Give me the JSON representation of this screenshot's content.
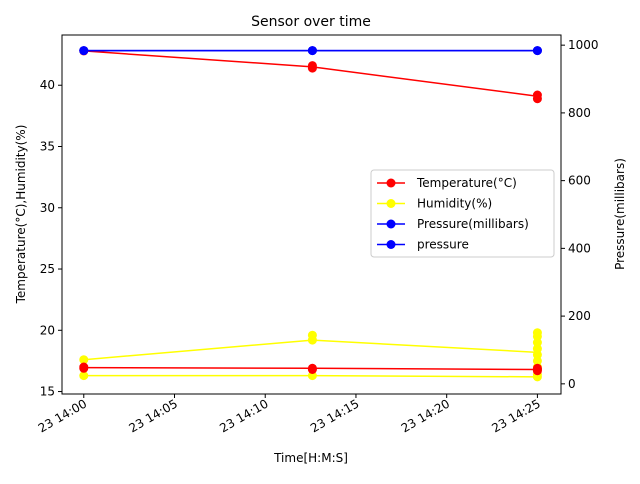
{
  "chart_data": {
    "type": "line",
    "title": "Sensor over time",
    "xlabel": "Time[H:M:S]",
    "ylabel_left": "Temperature(°C),Humidity(%)",
    "ylabel_right": "Pressure(millibars)",
    "x_ticks": [
      {
        "value": 0,
        "label": "23 14:00"
      },
      {
        "value": 5,
        "label": "23 14:05"
      },
      {
        "value": 10,
        "label": "23 14:10"
      },
      {
        "value": 15,
        "label": "23 14:15"
      },
      {
        "value": 20,
        "label": "23 14:20"
      },
      {
        "value": 25,
        "label": "23 14:25"
      }
    ],
    "xlim": [
      -1.2,
      26.3
    ],
    "ylim_left": [
      14.8,
      44.1
    ],
    "yticks_left": [
      15,
      20,
      25,
      30,
      35,
      40
    ],
    "ylim_right": [
      -30,
      1030
    ],
    "yticks_right": [
      0,
      200,
      400,
      600,
      800,
      1000
    ],
    "legend_position": "center-right",
    "grid": false,
    "series": [
      {
        "name": "Temperature(°C)",
        "color": "#ff0000",
        "axis": "left",
        "x": [
          0,
          12.6,
          25
        ],
        "y": [
          16.95,
          16.9,
          16.8
        ],
        "marker_points": [
          [
            0,
            17.0
          ],
          [
            0,
            16.9
          ],
          [
            12.6,
            16.9
          ],
          [
            12.6,
            16.8
          ],
          [
            25,
            16.8
          ],
          [
            25,
            16.7
          ],
          [
            25,
            16.9
          ]
        ]
      },
      {
        "name": "Humidity(%)",
        "color": "#ffff00",
        "axis": "left",
        "x": [
          0,
          12.6,
          25
        ],
        "y": [
          17.6,
          19.2,
          18.2
        ],
        "marker_points": [
          [
            0,
            17.6
          ],
          [
            0,
            16.3
          ],
          [
            12.6,
            19.2
          ],
          [
            12.6,
            19.6
          ],
          [
            12.6,
            16.3
          ],
          [
            25,
            16.2
          ],
          [
            25,
            16.4
          ],
          [
            25,
            17.0
          ],
          [
            25,
            17.5
          ],
          [
            25,
            18.0
          ],
          [
            25,
            18.5
          ],
          [
            25,
            19.0
          ],
          [
            25,
            19.5
          ],
          [
            25,
            19.8
          ]
        ]
      },
      {
        "name": "Humidity(%)",
        "color": "#ffff00",
        "axis": "left",
        "show_in_legend": false,
        "x": [
          0,
          12.6,
          25
        ],
        "y": [
          16.3,
          16.3,
          16.2
        ],
        "marker_points": []
      },
      {
        "name": "Temperature(°C)",
        "color": "#ff0000",
        "axis": "left",
        "show_in_legend": false,
        "x": [
          0,
          12.6,
          25
        ],
        "y": [
          42.8,
          41.5,
          39.1
        ],
        "marker_points": [
          [
            0,
            42.8
          ],
          [
            12.6,
            41.4
          ],
          [
            12.6,
            41.6
          ],
          [
            25,
            38.9
          ],
          [
            25,
            39.2
          ]
        ]
      },
      {
        "name": "Pressure(millibars)",
        "color": "#0000ff",
        "axis": "right",
        "x": [
          0,
          12.6,
          25
        ],
        "y": [
          984,
          984,
          984
        ],
        "marker_points": [
          [
            0,
            984
          ],
          [
            12.6,
            984
          ],
          [
            25,
            984
          ]
        ]
      },
      {
        "name": "pressure",
        "color": "#0000ff",
        "axis": "right",
        "x": [
          0,
          12.6,
          25
        ],
        "y": [
          984,
          984,
          984
        ],
        "marker_points": [
          [
            0,
            984
          ],
          [
            12.6,
            984
          ],
          [
            25,
            984
          ]
        ]
      }
    ]
  }
}
